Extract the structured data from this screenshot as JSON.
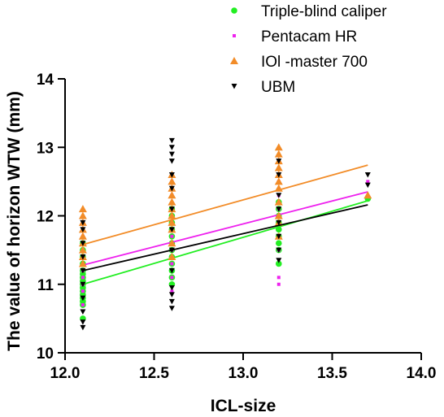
{
  "chart_data": {
    "type": "scatter",
    "title": "",
    "xlabel": "ICL-size",
    "ylabel": "The value of horizon WTW (mm)",
    "xlim": [
      12.0,
      14.0
    ],
    "ylim": [
      10,
      14
    ],
    "xticks": [
      "12.0",
      "12.5",
      "13.0",
      "13.5",
      "14.0"
    ],
    "yticks": [
      "10",
      "11",
      "12",
      "13",
      "14"
    ],
    "grid": false,
    "legend_position": "top-right",
    "series": [
      {
        "name": "Triple-blind caliper",
        "color": "#22ee22",
        "marker": "circle",
        "points": [
          [
            12.1,
            10.5
          ],
          [
            12.1,
            10.7
          ],
          [
            12.1,
            10.75
          ],
          [
            12.1,
            10.8
          ],
          [
            12.1,
            10.85
          ],
          [
            12.1,
            10.9
          ],
          [
            12.1,
            10.95
          ],
          [
            12.1,
            11.0
          ],
          [
            12.1,
            11.05
          ],
          [
            12.1,
            11.1
          ],
          [
            12.1,
            11.15
          ],
          [
            12.1,
            11.2
          ],
          [
            12.1,
            11.3
          ],
          [
            12.1,
            11.4
          ],
          [
            12.1,
            11.5
          ],
          [
            12.1,
            11.6
          ],
          [
            12.6,
            11.0
          ],
          [
            12.6,
            11.1
          ],
          [
            12.6,
            11.2
          ],
          [
            12.6,
            11.3
          ],
          [
            12.6,
            11.4
          ],
          [
            12.6,
            11.5
          ],
          [
            12.6,
            11.6
          ],
          [
            12.6,
            11.7
          ],
          [
            12.6,
            11.8
          ],
          [
            12.6,
            11.9
          ],
          [
            12.6,
            12.0
          ],
          [
            12.6,
            12.1
          ],
          [
            13.2,
            11.3
          ],
          [
            13.2,
            11.5
          ],
          [
            13.2,
            11.6
          ],
          [
            13.2,
            11.7
          ],
          [
            13.2,
            11.8
          ],
          [
            13.2,
            11.9
          ],
          [
            13.2,
            12.0
          ],
          [
            13.2,
            12.1
          ],
          [
            13.2,
            12.2
          ],
          [
            13.7,
            12.25
          ]
        ],
        "fit": [
          [
            12.1,
            11.0
          ],
          [
            13.7,
            12.22
          ]
        ]
      },
      {
        "name": "Pentacam HR",
        "color": "#ee22ee",
        "marker": "square",
        "points": [
          [
            12.1,
            10.7
          ],
          [
            12.1,
            10.9
          ],
          [
            12.1,
            11.0
          ],
          [
            12.1,
            11.1
          ],
          [
            12.1,
            11.2
          ],
          [
            12.1,
            11.3
          ],
          [
            12.1,
            11.4
          ],
          [
            12.1,
            11.5
          ],
          [
            12.1,
            11.6
          ],
          [
            12.1,
            11.7
          ],
          [
            12.1,
            11.8
          ],
          [
            12.1,
            11.9
          ],
          [
            12.6,
            10.9
          ],
          [
            12.6,
            11.1
          ],
          [
            12.6,
            11.3
          ],
          [
            12.6,
            11.5
          ],
          [
            12.6,
            11.7
          ],
          [
            12.6,
            11.9
          ],
          [
            12.6,
            12.1
          ],
          [
            12.6,
            12.3
          ],
          [
            12.6,
            12.5
          ],
          [
            13.2,
            11.0
          ],
          [
            13.2,
            11.1
          ],
          [
            13.2,
            11.5
          ],
          [
            13.2,
            11.7
          ],
          [
            13.2,
            11.9
          ],
          [
            13.2,
            12.1
          ],
          [
            13.2,
            12.3
          ],
          [
            13.2,
            12.5
          ],
          [
            13.7,
            12.5
          ]
        ],
        "fit": [
          [
            12.1,
            11.28
          ],
          [
            13.7,
            12.35
          ]
        ]
      },
      {
        "name": "IOl -master 700",
        "color": "#f28c28",
        "marker": "triangle-up",
        "points": [
          [
            12.1,
            11.3
          ],
          [
            12.1,
            11.4
          ],
          [
            12.1,
            11.5
          ],
          [
            12.1,
            11.6
          ],
          [
            12.1,
            11.7
          ],
          [
            12.1,
            11.8
          ],
          [
            12.1,
            11.9
          ],
          [
            12.1,
            12.0
          ],
          [
            12.1,
            12.1
          ],
          [
            12.6,
            11.4
          ],
          [
            12.6,
            11.6
          ],
          [
            12.6,
            11.8
          ],
          [
            12.6,
            11.9
          ],
          [
            12.6,
            12.0
          ],
          [
            12.6,
            12.1
          ],
          [
            12.6,
            12.2
          ],
          [
            12.6,
            12.3
          ],
          [
            12.6,
            12.4
          ],
          [
            12.6,
            12.5
          ],
          [
            12.6,
            12.6
          ],
          [
            13.2,
            11.7
          ],
          [
            13.2,
            11.9
          ],
          [
            13.2,
            12.0
          ],
          [
            13.2,
            12.2
          ],
          [
            13.2,
            12.4
          ],
          [
            13.2,
            12.5
          ],
          [
            13.2,
            12.6
          ],
          [
            13.2,
            12.7
          ],
          [
            13.2,
            12.8
          ],
          [
            13.2,
            12.9
          ],
          [
            13.2,
            13.0
          ],
          [
            13.7,
            12.3
          ]
        ],
        "fit": [
          [
            12.1,
            11.58
          ],
          [
            13.7,
            12.74
          ]
        ]
      },
      {
        "name": "UBM",
        "color": "#000000",
        "marker": "triangle-down",
        "points": [
          [
            12.1,
            10.37
          ],
          [
            12.1,
            10.45
          ],
          [
            12.1,
            10.6
          ],
          [
            12.1,
            10.8
          ],
          [
            12.1,
            11.0
          ],
          [
            12.1,
            11.2
          ],
          [
            12.1,
            11.4
          ],
          [
            12.1,
            11.6
          ],
          [
            12.1,
            11.8
          ],
          [
            12.1,
            11.9
          ],
          [
            12.6,
            10.65
          ],
          [
            12.6,
            10.75
          ],
          [
            12.6,
            10.85
          ],
          [
            12.6,
            10.95
          ],
          [
            12.6,
            11.2
          ],
          [
            12.6,
            11.5
          ],
          [
            12.6,
            11.8
          ],
          [
            12.6,
            12.1
          ],
          [
            12.6,
            12.4
          ],
          [
            12.6,
            12.6
          ],
          [
            12.6,
            12.8
          ],
          [
            12.6,
            12.9
          ],
          [
            12.6,
            13.0
          ],
          [
            12.6,
            13.1
          ],
          [
            13.2,
            11.35
          ],
          [
            13.2,
            11.5
          ],
          [
            13.2,
            11.7
          ],
          [
            13.2,
            11.9
          ],
          [
            13.2,
            12.1
          ],
          [
            13.2,
            12.3
          ],
          [
            13.2,
            12.6
          ],
          [
            13.2,
            12.8
          ],
          [
            13.7,
            12.6
          ],
          [
            13.7,
            12.45
          ]
        ],
        "fit": [
          [
            12.1,
            11.2
          ],
          [
            13.7,
            12.16
          ]
        ]
      }
    ]
  }
}
